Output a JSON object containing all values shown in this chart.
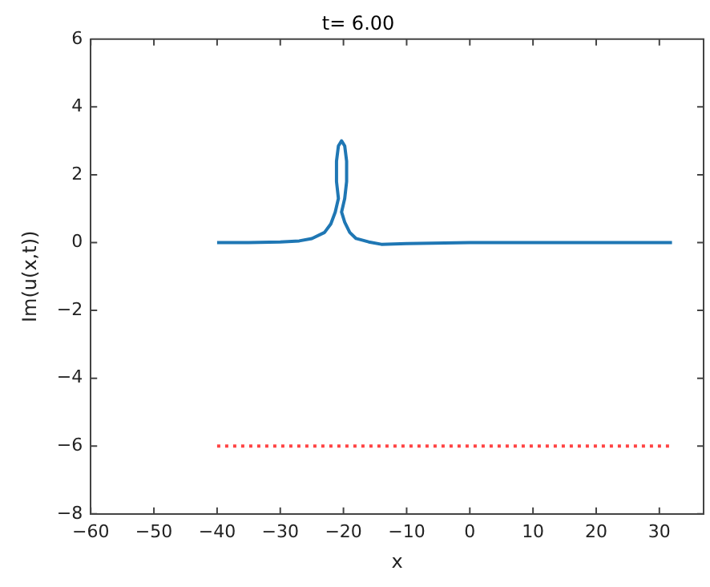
{
  "chart_data": {
    "type": "line",
    "title": "t= 6.00",
    "xlabel": "x",
    "ylabel": "Im(u(x,t))",
    "xlim": [
      -60,
      37
    ],
    "xticks": [
      -60,
      -50,
      -40,
      -30,
      -20,
      -10,
      0,
      10,
      20,
      30
    ],
    "ylim": [
      -8,
      6
    ],
    "yticks": [
      -8,
      -6,
      -4,
      -2,
      0,
      2,
      4,
      6
    ],
    "grid": false,
    "legend": false,
    "series": [
      {
        "color": "#1f77b4",
        "line_style": "solid",
        "x": [
          -40,
          -35,
          -30,
          -27,
          -25,
          -23,
          -22,
          -21.3,
          -20.8,
          -21.1,
          -21.1,
          -20.8,
          -20.3,
          -19.8,
          -19.5,
          -19.5,
          -19.8,
          -20.3,
          -19.8,
          -19,
          -18,
          -16,
          -14,
          -10,
          0,
          10,
          20,
          32
        ],
        "values": [
          0,
          0,
          0.02,
          0.05,
          0.12,
          0.3,
          0.55,
          0.9,
          1.3,
          1.8,
          2.4,
          2.85,
          3.0,
          2.85,
          2.4,
          1.8,
          1.3,
          0.9,
          0.6,
          0.3,
          0.12,
          0.02,
          -0.05,
          -0.03,
          0,
          0,
          0,
          0
        ]
      },
      {
        "color": "#ff4444",
        "line_style": "dotted",
        "x": [
          -40,
          32
        ],
        "values": [
          -6,
          -6
        ]
      }
    ]
  }
}
